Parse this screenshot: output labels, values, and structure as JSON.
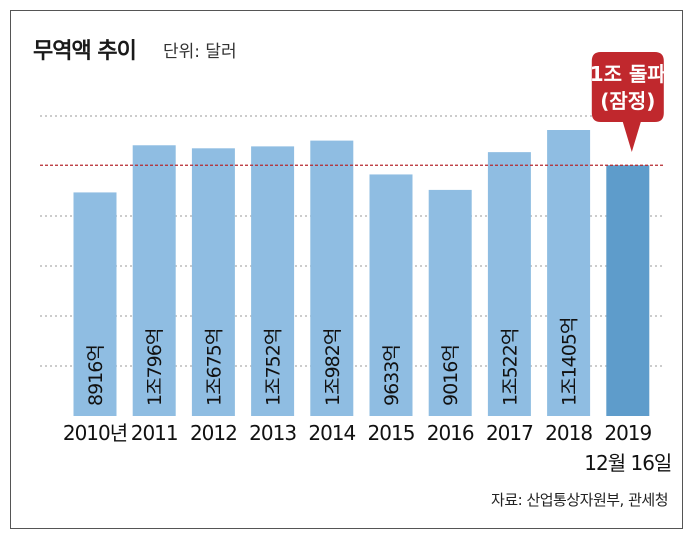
{
  "header": {
    "title": "무역액 추이",
    "unit": "단위: 달러"
  },
  "footer": {
    "source": "자료: 산업통상자원부, 관세청"
  },
  "callout": {
    "line1": "1조 돌파",
    "line2": "(잠정)"
  },
  "colors": {
    "bar": "#8fbde2",
    "bar_highlight": "#5e9ccb",
    "gridline": "#999999",
    "reference_line": "#b5292e",
    "callout": "#c0282d"
  },
  "chart_data": {
    "type": "bar",
    "categories": [
      "2010년",
      "2011",
      "2012",
      "2013",
      "2014",
      "2015",
      "2016",
      "2017",
      "2018",
      "2019"
    ],
    "category_sublabels": [
      "",
      "",
      "",
      "",
      "",
      "",
      "",
      "",
      "",
      "12월 16일"
    ],
    "values": [
      8916,
      10796,
      10675,
      10752,
      10982,
      9633,
      9016,
      10522,
      11405,
      10000
    ],
    "data_labels": [
      "8916억",
      "1조796억",
      "1조675억",
      "1조752억",
      "1조982억",
      "9633억",
      "9016억",
      "1조522억",
      "1조1405억",
      ""
    ],
    "value_unit": "억 달러",
    "highlight_index": 9,
    "reference_value": 10000,
    "ylim": [
      0,
      11500
    ],
    "grid": true,
    "legend": "none",
    "title": "무역액 추이",
    "xlabel": "",
    "ylabel": ""
  }
}
